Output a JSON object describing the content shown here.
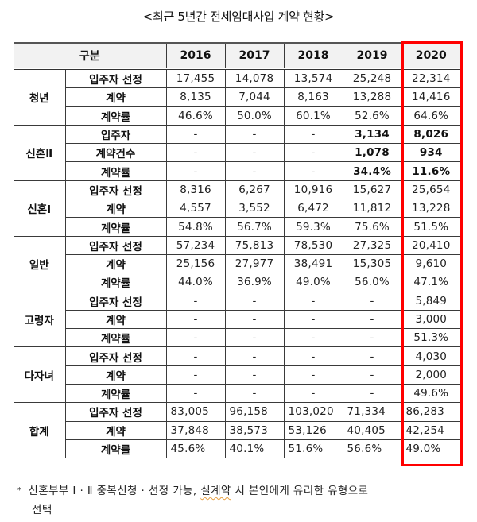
{
  "title": "<최근 5년간 전세임대사업 계약 현황>",
  "table": {
    "header": {
      "category": "구분",
      "years": [
        "2016",
        "2017",
        "2018",
        "2019",
        "2020"
      ]
    },
    "groups": [
      {
        "name": "청년",
        "rows": [
          {
            "label": "입주자 선정",
            "values": [
              "17,455",
              "14,078",
              "13,574",
              "25,248",
              "22,314"
            ]
          },
          {
            "label": "계약",
            "values": [
              "8,135",
              "7,044",
              "8,163",
              "13,288",
              "14,416"
            ]
          },
          {
            "label": "계약률",
            "values": [
              "46.6%",
              "50.0%",
              "60.1%",
              "52.6%",
              "64.6%"
            ]
          }
        ]
      },
      {
        "name": "신혼Ⅱ",
        "rows": [
          {
            "label": "입주자",
            "values": [
              "-",
              "-",
              "-",
              "3,134",
              "8,026"
            ]
          },
          {
            "label": "계약건수",
            "values": [
              "-",
              "-",
              "-",
              "1,078",
              "934"
            ]
          },
          {
            "label": "계약률",
            "values": [
              "-",
              "-",
              "-",
              "34.4%",
              "11.6%"
            ]
          }
        ]
      },
      {
        "name": "신혼Ⅰ",
        "rows": [
          {
            "label": "입주자 선정",
            "values": [
              "8,316",
              "6,267",
              "10,916",
              "15,627",
              "25,654"
            ]
          },
          {
            "label": "계약",
            "values": [
              "4,557",
              "3,552",
              "6,472",
              "11,812",
              "13,228"
            ]
          },
          {
            "label": "계약률",
            "values": [
              "54.8%",
              "56.7%",
              "59.3%",
              "75.6%",
              "51.5%"
            ]
          }
        ]
      },
      {
        "name": "일반",
        "rows": [
          {
            "label": "입주자 선정",
            "values": [
              "57,234",
              "75,813",
              "78,530",
              "27,325",
              "20,410"
            ]
          },
          {
            "label": "계약",
            "values": [
              "25,156",
              "27,977",
              "38,491",
              "15,305",
              "9,610"
            ]
          },
          {
            "label": "계약률",
            "values": [
              "44.0%",
              "36.9%",
              "49.0%",
              "56.0%",
              "47.1%"
            ]
          }
        ]
      },
      {
        "name": "고령자",
        "rows": [
          {
            "label": "입주자 선정",
            "values": [
              "-",
              "-",
              "-",
              "-",
              "5,849"
            ]
          },
          {
            "label": "계약",
            "values": [
              "-",
              "-",
              "-",
              "-",
              "3,000"
            ]
          },
          {
            "label": "계약률",
            "values": [
              "-",
              "-",
              "-",
              "-",
              "51.3%"
            ]
          }
        ]
      },
      {
        "name": "다자녀",
        "rows": [
          {
            "label": "입주자 선정",
            "values": [
              "-",
              "-",
              "-",
              "-",
              "4,030"
            ]
          },
          {
            "label": "계약",
            "values": [
              "-",
              "-",
              "-",
              "-",
              "2,000"
            ]
          },
          {
            "label": "계약률",
            "values": [
              "-",
              "-",
              "-",
              "-",
              "49.6%"
            ]
          }
        ]
      },
      {
        "name": "합계",
        "rows": [
          {
            "label": "입주자 선정",
            "values": [
              "83,005",
              "96,158",
              "103,020",
              "71,334",
              "86,283"
            ]
          },
          {
            "label": "계약",
            "values": [
              "37,848",
              "38,573",
              "53,126",
              "40,405",
              "42,254"
            ]
          },
          {
            "label": "계약률",
            "values": [
              "45.6%",
              "40.1%",
              "51.6%",
              "56.6%",
              "49.0%"
            ]
          }
        ]
      }
    ],
    "highlight_year": "2020",
    "highlight_color": "#ff0000"
  },
  "footnote": {
    "marker": "*",
    "line1_a": "신혼부부 Ⅰ · Ⅱ 중복신청 · 선정 가능, ",
    "line1_b": "실계약",
    "line1_c": " 시 본인에게 유리한 유형으로",
    "line2": "선택"
  }
}
